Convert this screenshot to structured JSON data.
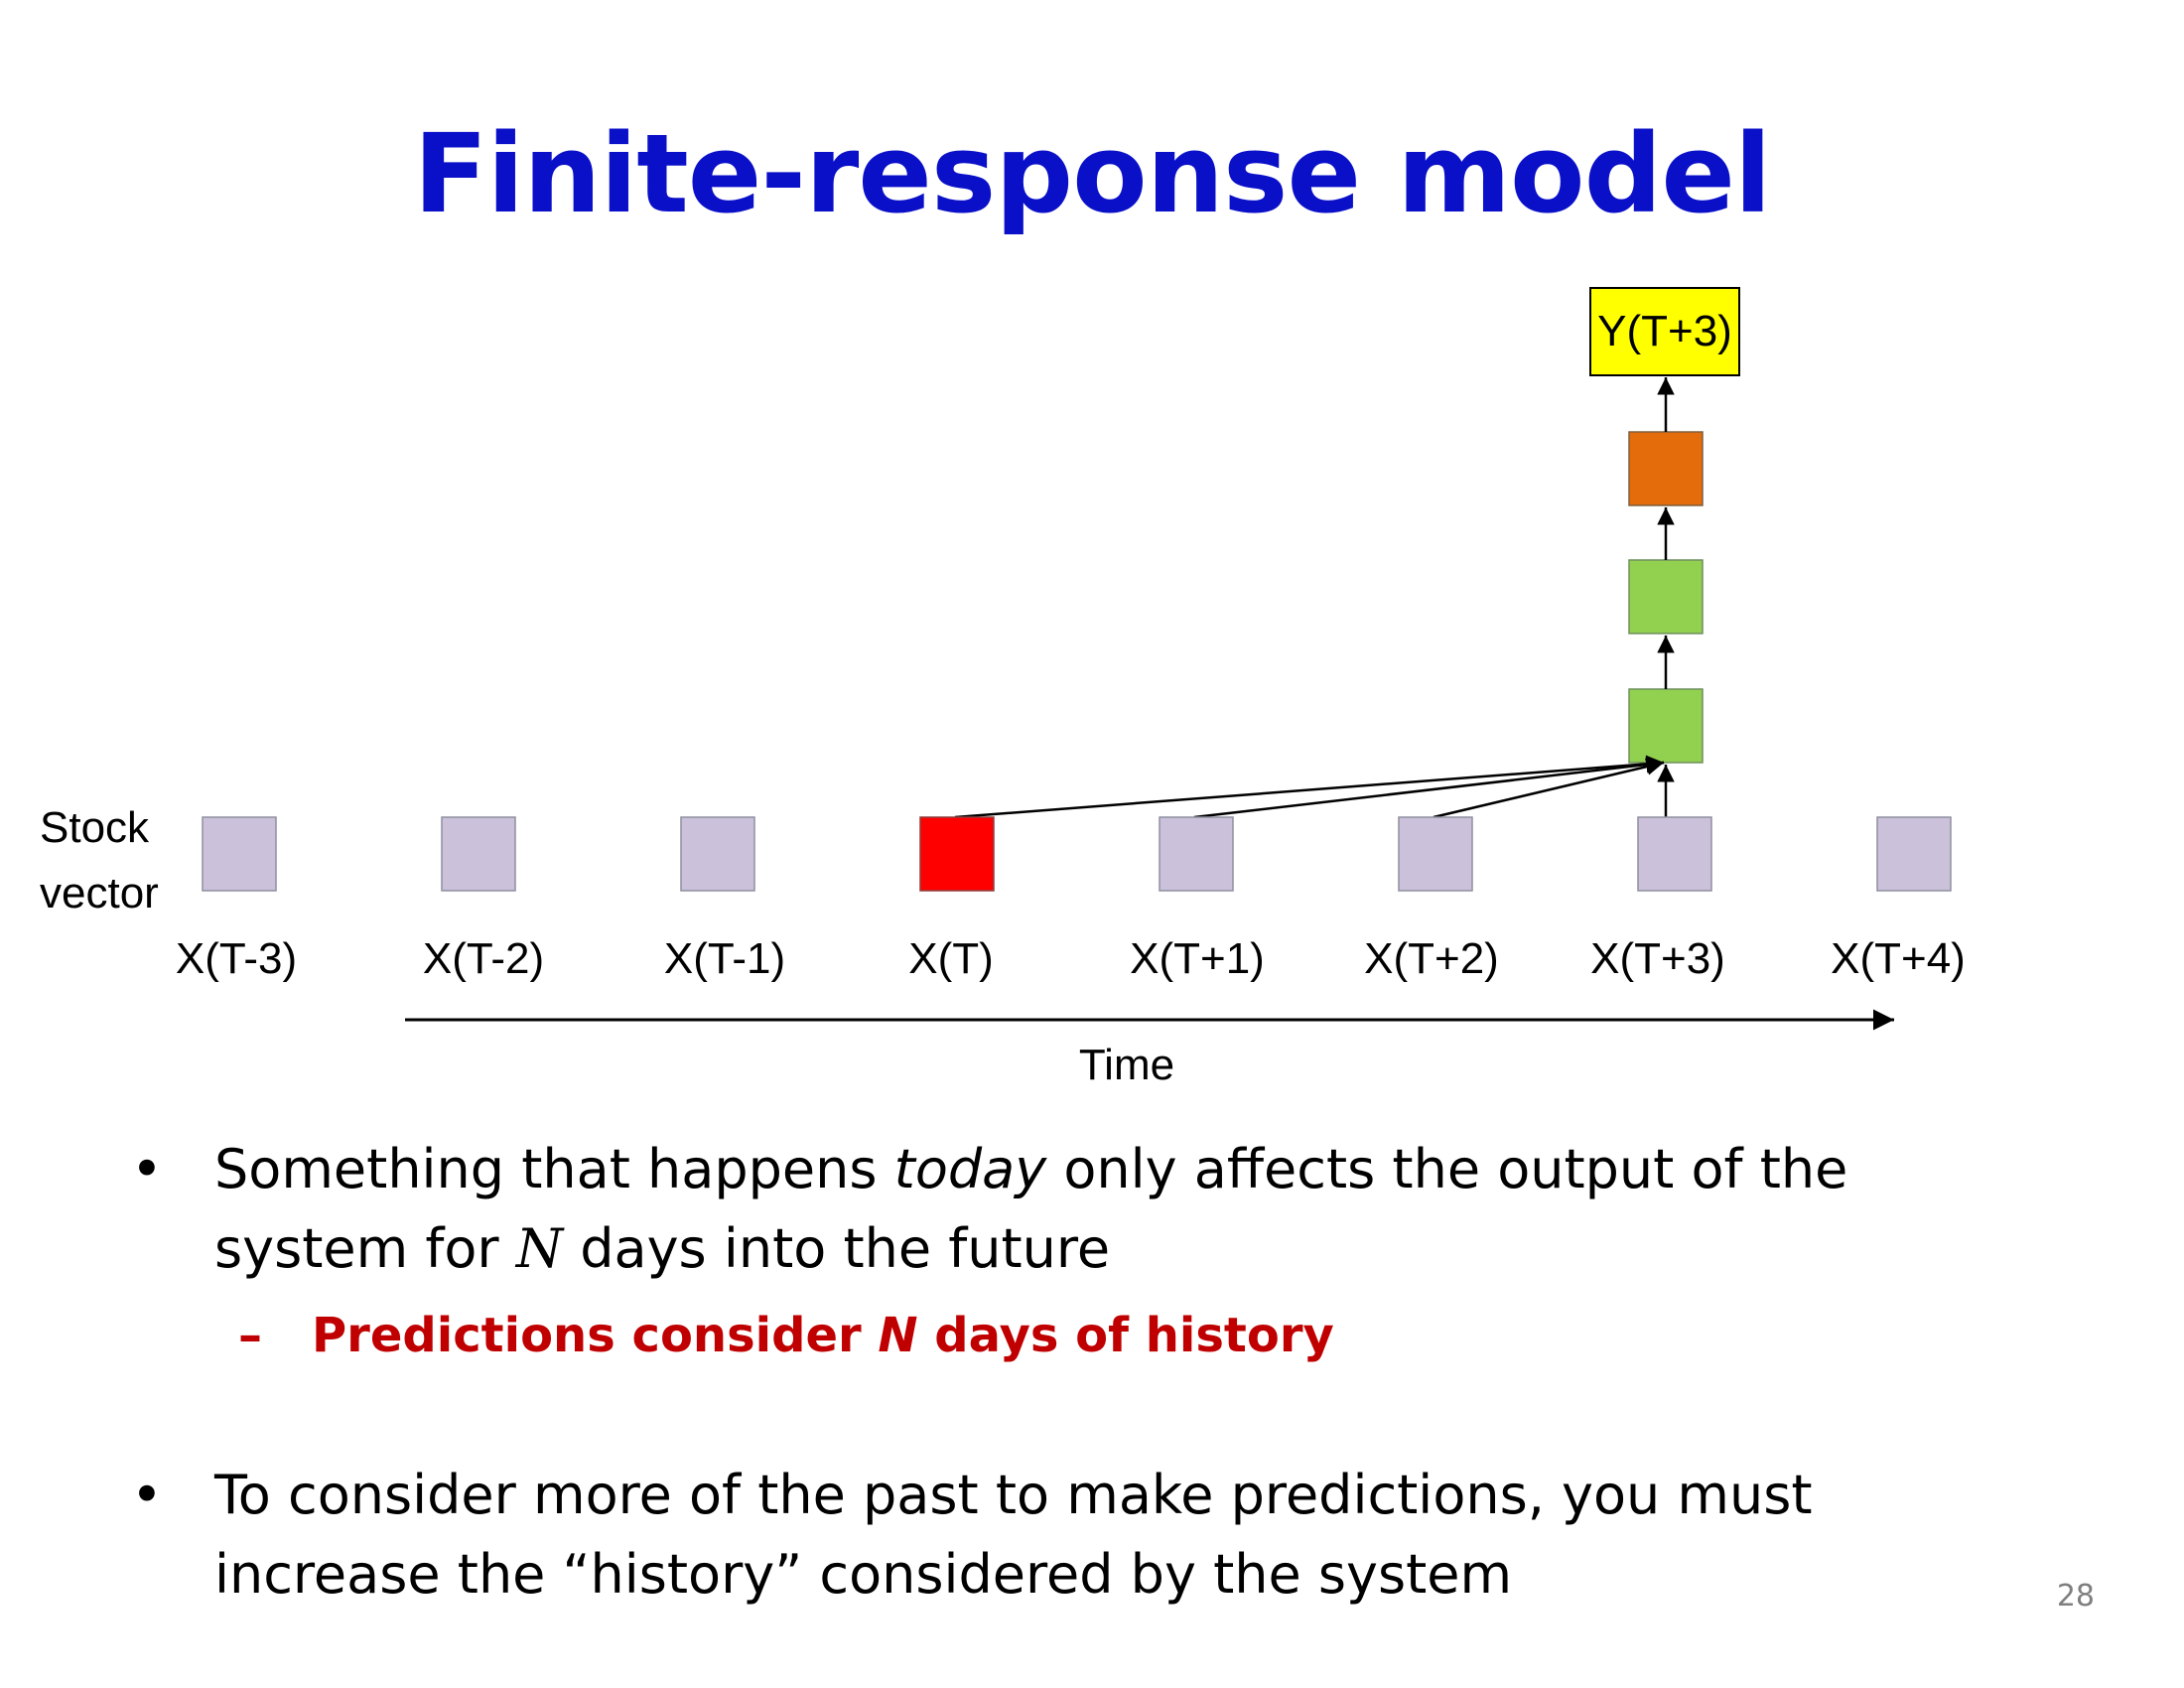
{
  "title": "Finite-response model",
  "diagram": {
    "output_label": "Y(T+3)",
    "stock_label_line1": "Stock",
    "stock_label_line2": "vector",
    "inputs": [
      "X(T-3)",
      "X(T-2)",
      "X(T-1)",
      "X(T)",
      "X(T+1)",
      "X(T+2)",
      "X(T+3)",
      "X(T+4)"
    ],
    "current_input": "X(T)",
    "time_label": "Time",
    "colors": {
      "input_box": "#ccc1da",
      "current_input": "#ff0000",
      "hidden_layer": "#92d050",
      "top_layer": "#e46c0a",
      "output_box": "#ffff00",
      "title": "#0a10c8"
    }
  },
  "bullets": {
    "b1_pre": "Something that happens ",
    "b1_italic": "today",
    "b1_mid": " only affects the output of the system for ",
    "b1_var": "N",
    "b1_post": " days into the future",
    "sub_dash": "–",
    "sub_pre": "Predictions consider ",
    "sub_var": "N",
    "sub_post": " days of history",
    "b2": "To consider more of the past to make predictions, you must increase the “history” considered by the system",
    "bullet_char": "•"
  },
  "page_number": "28"
}
